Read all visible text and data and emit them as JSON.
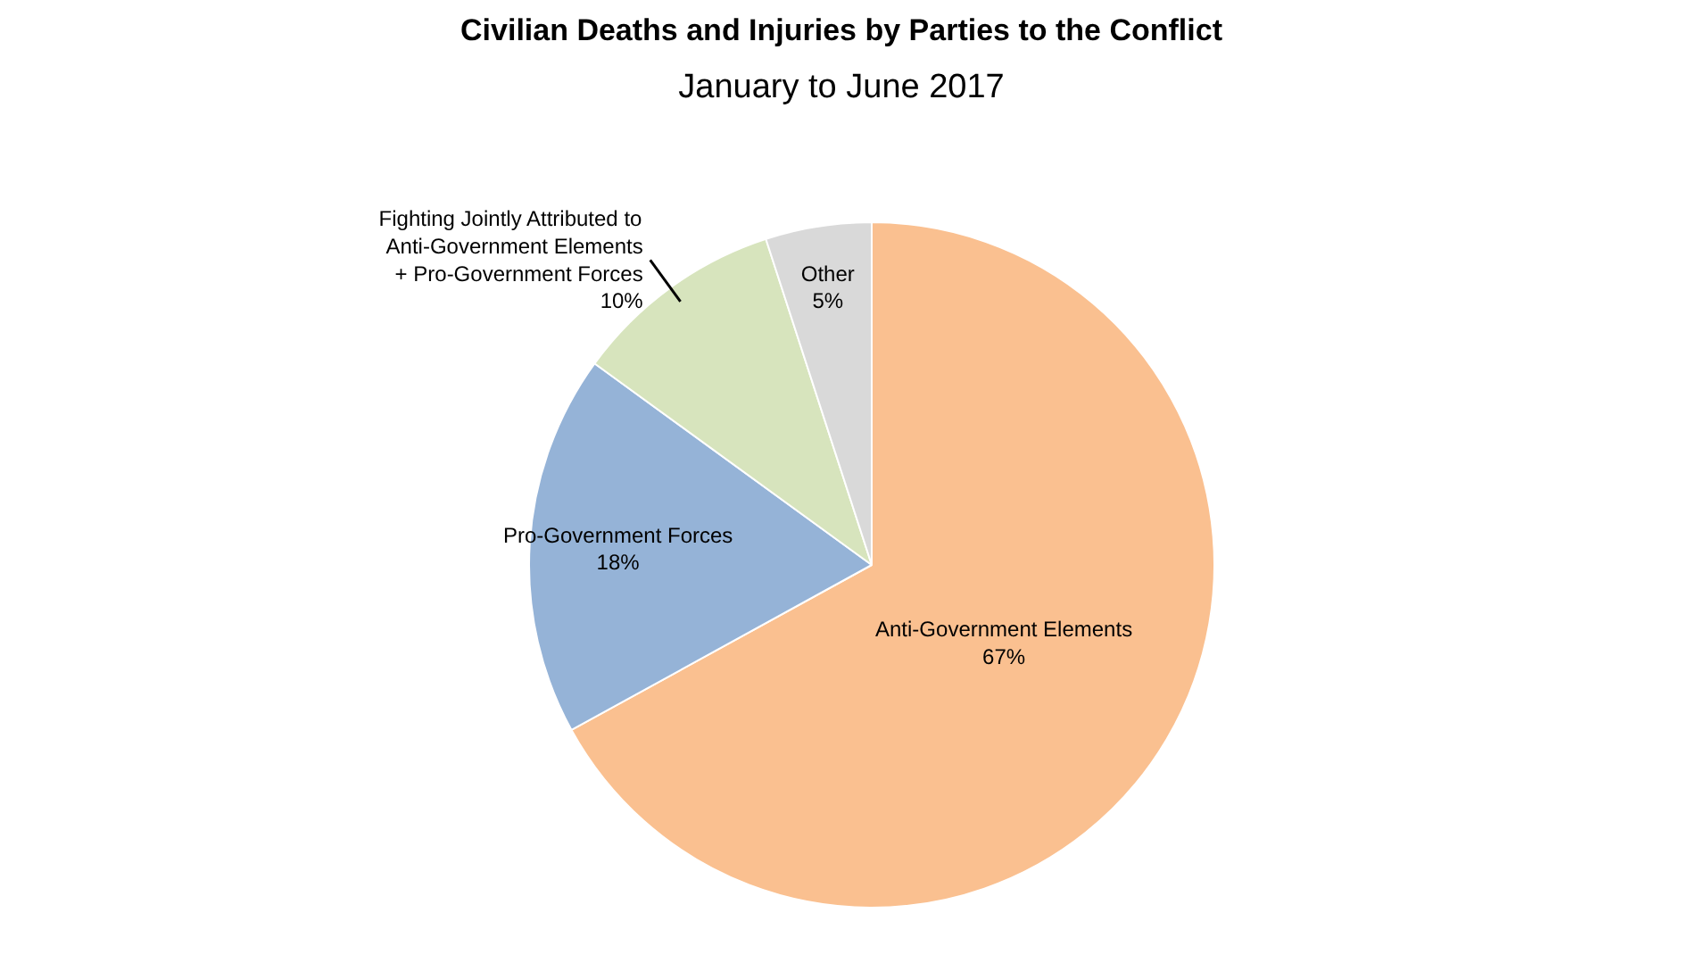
{
  "chart_data": {
    "type": "pie",
    "title": "Civilian Deaths and Injuries by Parties to the Conflict",
    "subtitle": "January to June 2017",
    "categories": [
      "Anti-Government Elements",
      "Pro-Government Forces",
      "Fighting Jointly Attributed to\nAnti-Government Elements\n+ Pro-Government Forces",
      "Other"
    ],
    "values": [
      67,
      18,
      10,
      5
    ],
    "colors": [
      "#fac090",
      "#95b3d7",
      "#d7e4bd",
      "#d9d9d9"
    ],
    "value_labels": [
      "67%",
      "18%",
      "10%",
      "5%"
    ]
  }
}
